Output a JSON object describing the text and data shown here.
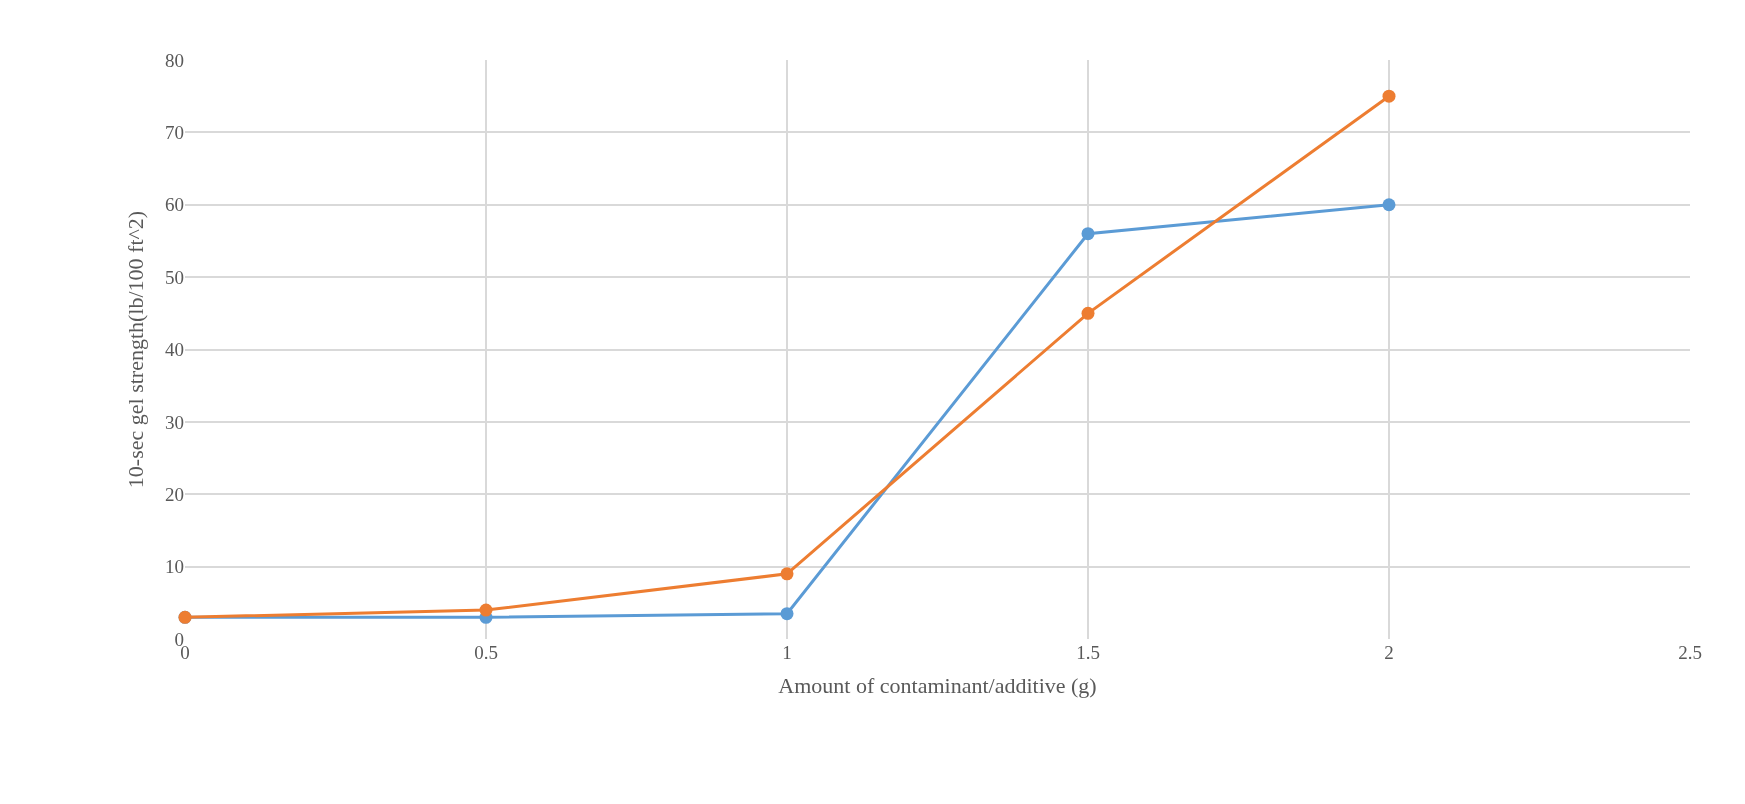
{
  "chart_data": {
    "type": "line",
    "xlabel": "Amount of contaminant/additive (g)",
    "ylabel": "10-sec gel strength(lb/100 ft^2)",
    "x": [
      0,
      0.5,
      1,
      1.5,
      2
    ],
    "series": [
      {
        "color": "#5b9bd5",
        "values": [
          3,
          3,
          3.5,
          56,
          60
        ]
      },
      {
        "color": "#ed7d31",
        "values": [
          3,
          4,
          9,
          45,
          75
        ]
      }
    ],
    "xlim": [
      0,
      2.5
    ],
    "xticks": [
      0,
      0.5,
      1,
      1.5,
      2,
      2.5
    ],
    "ylim": [
      0,
      80
    ],
    "yticks": [
      0,
      10,
      20,
      30,
      40,
      50,
      60,
      70,
      80
    ],
    "grid": true,
    "marker": "circle",
    "line_style": "solid"
  }
}
